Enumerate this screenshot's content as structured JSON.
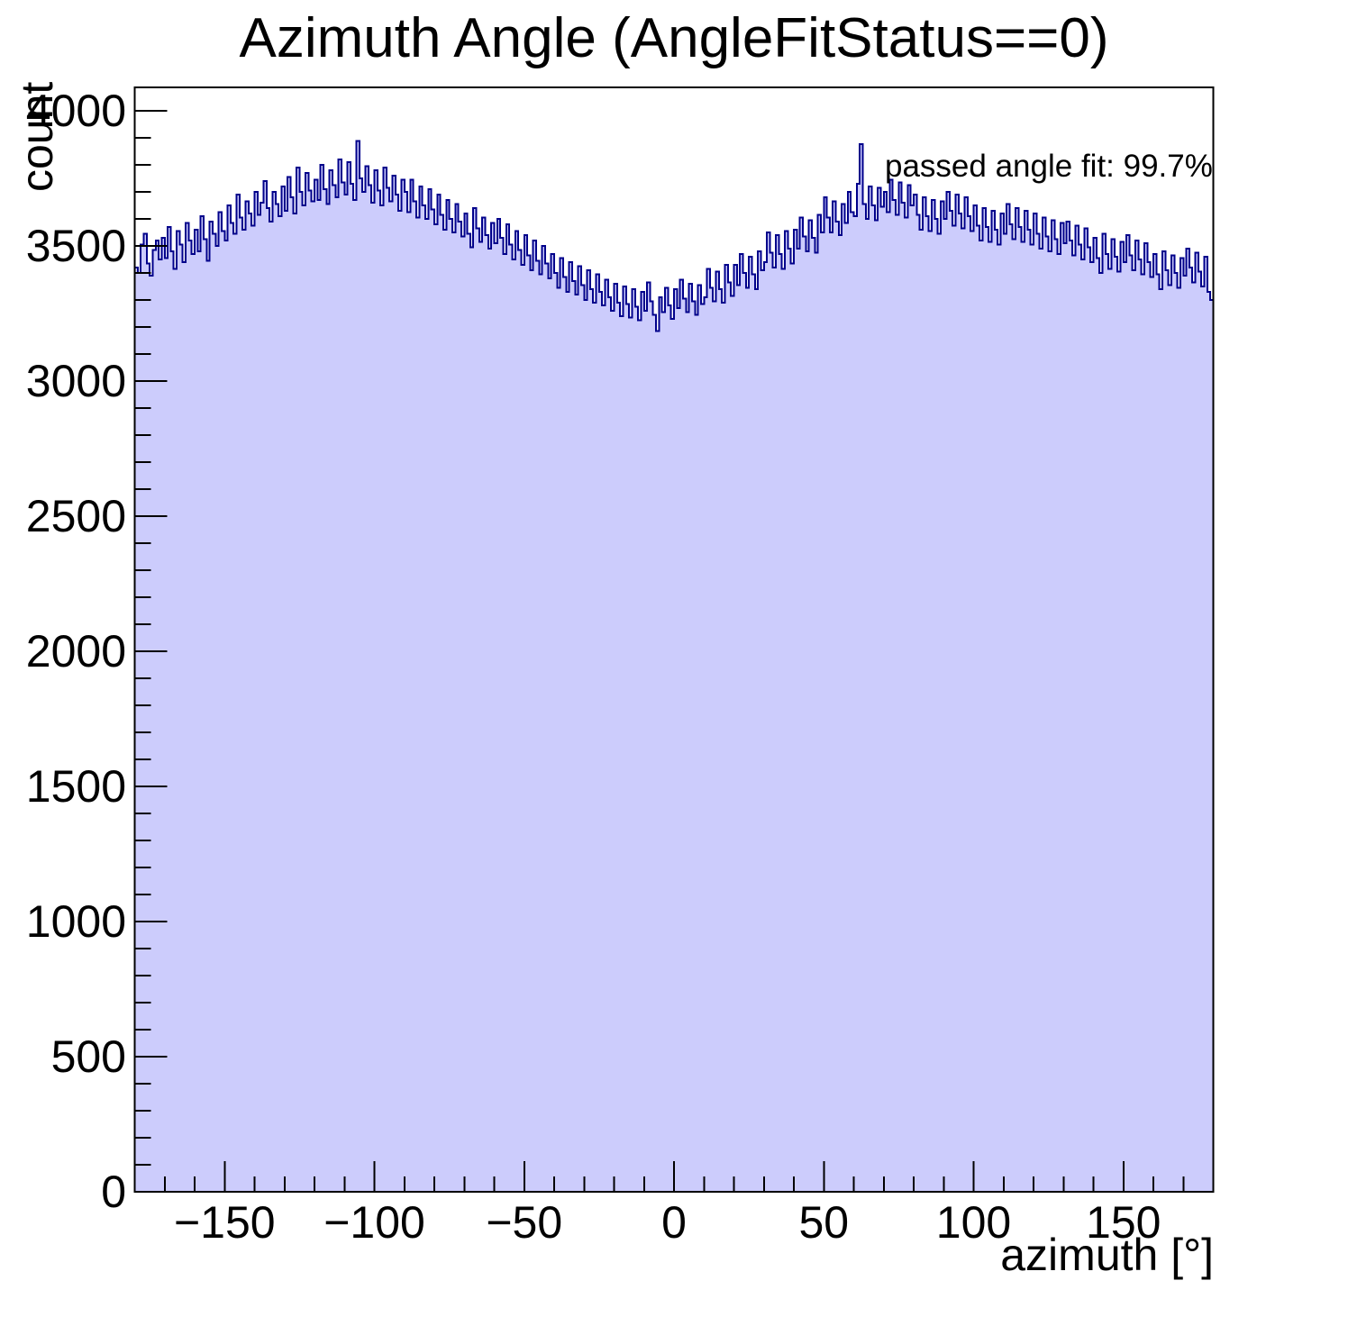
{
  "chart_data": {
    "type": "bar",
    "title": "Azimuth Angle (AngleFitStatus==0)",
    "xlabel": "azimuth [°]",
    "ylabel": "count",
    "annotation": "passed angle fit: 99.7%",
    "xlim": [
      -180,
      180
    ],
    "ylim": [
      0,
      4087
    ],
    "bin_start": -180,
    "bin_width": 1,
    "x_ticks": [
      {
        "v": -150,
        "label": "−150"
      },
      {
        "v": -100,
        "label": "−100"
      },
      {
        "v": -50,
        "label": "−50"
      },
      {
        "v": 0,
        "label": "0"
      },
      {
        "v": 50,
        "label": "50"
      },
      {
        "v": 100,
        "label": "100"
      },
      {
        "v": 150,
        "label": "150"
      }
    ],
    "x_minor_step": 10,
    "y_ticks": [
      {
        "v": 0,
        "label": "0"
      },
      {
        "v": 500,
        "label": "500"
      },
      {
        "v": 1000,
        "label": "1000"
      },
      {
        "v": 1500,
        "label": "1500"
      },
      {
        "v": 2000,
        "label": "2000"
      },
      {
        "v": 2500,
        "label": "2500"
      },
      {
        "v": 3000,
        "label": "3000"
      },
      {
        "v": 3500,
        "label": "3500"
      },
      {
        "v": 4000,
        "label": "4000"
      }
    ],
    "y_minor_step": 100,
    "legend_position": "none",
    "grid": false,
    "colors": {
      "fill": "#ccccfc",
      "line": "#00008b",
      "frame": "#000000",
      "text": "#000000"
    },
    "values": [
      3420,
      3400,
      3505,
      3545,
      3435,
      3390,
      3485,
      3520,
      3450,
      3530,
      3455,
      3570,
      3480,
      3415,
      3555,
      3505,
      3440,
      3585,
      3520,
      3470,
      3560,
      3480,
      3610,
      3525,
      3445,
      3590,
      3545,
      3500,
      3625,
      3555,
      3520,
      3650,
      3585,
      3545,
      3690,
      3605,
      3560,
      3665,
      3620,
      3575,
      3700,
      3615,
      3660,
      3740,
      3640,
      3590,
      3700,
      3655,
      3610,
      3720,
      3630,
      3755,
      3680,
      3620,
      3790,
      3700,
      3650,
      3770,
      3705,
      3665,
      3745,
      3670,
      3800,
      3710,
      3655,
      3780,
      3725,
      3680,
      3820,
      3735,
      3690,
      3810,
      3730,
      3670,
      3888,
      3750,
      3700,
      3795,
      3725,
      3660,
      3780,
      3705,
      3650,
      3790,
      3715,
      3665,
      3760,
      3690,
      3630,
      3745,
      3700,
      3625,
      3745,
      3665,
      3605,
      3720,
      3650,
      3600,
      3710,
      3635,
      3580,
      3690,
      3615,
      3560,
      3670,
      3600,
      3550,
      3655,
      3590,
      3535,
      3620,
      3545,
      3495,
      3640,
      3565,
      3515,
      3605,
      3540,
      3490,
      3585,
      3510,
      3600,
      3530,
      3470,
      3580,
      3505,
      3450,
      3555,
      3485,
      3430,
      3540,
      3465,
      3410,
      3520,
      3445,
      3395,
      3500,
      3435,
      3380,
      3470,
      3400,
      3345,
      3455,
      3385,
      3330,
      3440,
      3370,
      3320,
      3425,
      3355,
      3300,
      3410,
      3340,
      3290,
      3395,
      3330,
      3280,
      3375,
      3310,
      3260,
      3360,
      3290,
      3240,
      3350,
      3285,
      3235,
      3340,
      3275,
      3225,
      3330,
      3260,
      3365,
      3295,
      3245,
      3185,
      3310,
      3255,
      3345,
      3280,
      3230,
      3340,
      3270,
      3375,
      3305,
      3255,
      3360,
      3295,
      3245,
      3355,
      3285,
      3310,
      3415,
      3345,
      3295,
      3405,
      3340,
      3290,
      3430,
      3365,
      3315,
      3430,
      3355,
      3470,
      3400,
      3345,
      3460,
      3395,
      3340,
      3480,
      3410,
      3440,
      3550,
      3475,
      3420,
      3540,
      3470,
      3415,
      3555,
      3490,
      3435,
      3560,
      3490,
      3605,
      3535,
      3480,
      3595,
      3530,
      3475,
      3615,
      3550,
      3680,
      3605,
      3550,
      3665,
      3590,
      3540,
      3655,
      3585,
      3700,
      3625,
      3610,
      3730,
      3877,
      3655,
      3600,
      3720,
      3650,
      3595,
      3715,
      3645,
      3700,
      3625,
      3745,
      3670,
      3615,
      3735,
      3660,
      3605,
      3725,
      3650,
      3690,
      3615,
      3560,
      3680,
      3610,
      3555,
      3670,
      3600,
      3545,
      3665,
      3600,
      3700,
      3630,
      3575,
      3690,
      3620,
      3565,
      3680,
      3610,
      3555,
      3650,
      3575,
      3520,
      3640,
      3570,
      3515,
      3630,
      3560,
      3505,
      3620,
      3545,
      3655,
      3580,
      3525,
      3640,
      3570,
      3515,
      3630,
      3560,
      3505,
      3620,
      3545,
      3490,
      3605,
      3535,
      3480,
      3595,
      3525,
      3470,
      3585,
      3510,
      3590,
      3520,
      3465,
      3575,
      3505,
      3450,
      3565,
      3495,
      3440,
      3530,
      3455,
      3400,
      3545,
      3470,
      3415,
      3525,
      3460,
      3405,
      3515,
      3440,
      3540,
      3465,
      3410,
      3520,
      3450,
      3395,
      3510,
      3440,
      3385,
      3470,
      3395,
      3340,
      3480,
      3410,
      3355,
      3465,
      3400,
      3345,
      3455,
      3390,
      3490,
      3420,
      3365,
      3475,
      3405,
      3350,
      3460,
      3330,
      3300
    ]
  }
}
